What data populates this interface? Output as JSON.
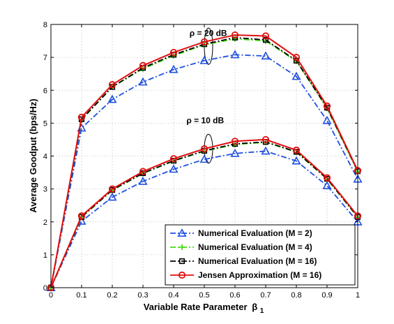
{
  "chart_data": {
    "type": "line",
    "xlabel": "Variable Rate Parameter",
    "xlabel_symbol": "β",
    "xlabel_subscript": "1",
    "ylabel": "Average Goodput (bps/Hz)",
    "xlim": [
      0,
      1
    ],
    "ylim": [
      0,
      8
    ],
    "xticks": [
      "0",
      "0.1",
      "0.2",
      "0.3",
      "0.4",
      "0.5",
      "0.6",
      "0.7",
      "0.8",
      "0.9",
      "1"
    ],
    "yticks": [
      "0",
      "1",
      "2",
      "3",
      "4",
      "5",
      "6",
      "7",
      "8"
    ],
    "grid": true,
    "legend_position": "bottom-right",
    "x": [
      0,
      0.1,
      0.2,
      0.3,
      0.4,
      0.5,
      0.6,
      0.7,
      0.8,
      0.9,
      1.0
    ],
    "annotations": [
      {
        "text": "ρ = 20 dB",
        "x": 0.52,
        "y": 7.65
      },
      {
        "text": "ρ = 10 dB",
        "x": 0.51,
        "y": 5.0
      }
    ],
    "series": [
      {
        "name": "Numerical Evaluation (M = 2)",
        "group": "20 dB",
        "color": "#1f4fe0",
        "marker": "triangle",
        "dash": "dashdot",
        "values": [
          0,
          4.85,
          5.72,
          6.25,
          6.63,
          6.9,
          7.08,
          7.04,
          6.42,
          5.08,
          3.3
        ]
      },
      {
        "name": "Numerical Evaluation (M = 4)",
        "group": "20 dB",
        "color": "#44dd11",
        "marker": "plus",
        "dash": "dashdot",
        "values": [
          0,
          5.1,
          6.1,
          6.65,
          7.05,
          7.38,
          7.56,
          7.5,
          6.88,
          5.45,
          3.52
        ]
      },
      {
        "name": "Numerical Evaluation (M = 16)",
        "group": "20 dB",
        "color": "#000000",
        "marker": "square",
        "dash": "dashdot",
        "values": [
          0,
          5.12,
          6.1,
          6.68,
          7.08,
          7.4,
          7.6,
          7.53,
          6.9,
          5.47,
          3.54
        ]
      },
      {
        "name": "Jensen Approximation (M = 16)",
        "group": "20 dB",
        "color": "#e01010",
        "marker": "circle",
        "dash": "solid",
        "values": [
          0,
          5.18,
          6.17,
          6.75,
          7.15,
          7.47,
          7.68,
          7.65,
          7.0,
          5.52,
          3.56
        ]
      },
      {
        "name": "Numerical Evaluation (M = 2)",
        "group": "10 dB",
        "color": "#1f4fe0",
        "marker": "triangle",
        "dash": "dashdot",
        "values": [
          0,
          2.02,
          2.75,
          3.23,
          3.6,
          3.9,
          4.08,
          4.15,
          3.85,
          3.1,
          2.0
        ]
      },
      {
        "name": "Numerical Evaluation (M = 4)",
        "group": "10 dB",
        "color": "#44dd11",
        "marker": "plus",
        "dash": "dashdot",
        "values": [
          0,
          2.14,
          2.96,
          3.47,
          3.85,
          4.15,
          4.35,
          4.42,
          4.12,
          3.3,
          2.14
        ]
      },
      {
        "name": "Numerical Evaluation (M = 16)",
        "group": "10 dB",
        "color": "#000000",
        "marker": "square",
        "dash": "dashdot",
        "values": [
          0,
          2.15,
          2.97,
          3.48,
          3.86,
          4.16,
          4.37,
          4.43,
          4.13,
          3.31,
          2.15
        ]
      },
      {
        "name": "Jensen Approximation (M = 16)",
        "group": "10 dB",
        "color": "#e01010",
        "marker": "circle",
        "dash": "solid",
        "values": [
          0,
          2.18,
          3.0,
          3.53,
          3.92,
          4.22,
          4.45,
          4.5,
          4.18,
          3.34,
          2.18
        ]
      }
    ],
    "legend": [
      {
        "label": "Numerical Evaluation (M = 2)",
        "color": "#1f4fe0",
        "marker": "triangle",
        "dash": "dashdot"
      },
      {
        "label": "Numerical Evaluation (M = 4)",
        "color": "#44dd11",
        "marker": "plus",
        "dash": "dashdot"
      },
      {
        "label": "Numerical Evaluation (M = 16)",
        "color": "#000000",
        "marker": "square",
        "dash": "dashdot"
      },
      {
        "label": "Jensen Approximation (M = 16)",
        "color": "#e01010",
        "marker": "circle",
        "dash": "solid"
      }
    ]
  }
}
